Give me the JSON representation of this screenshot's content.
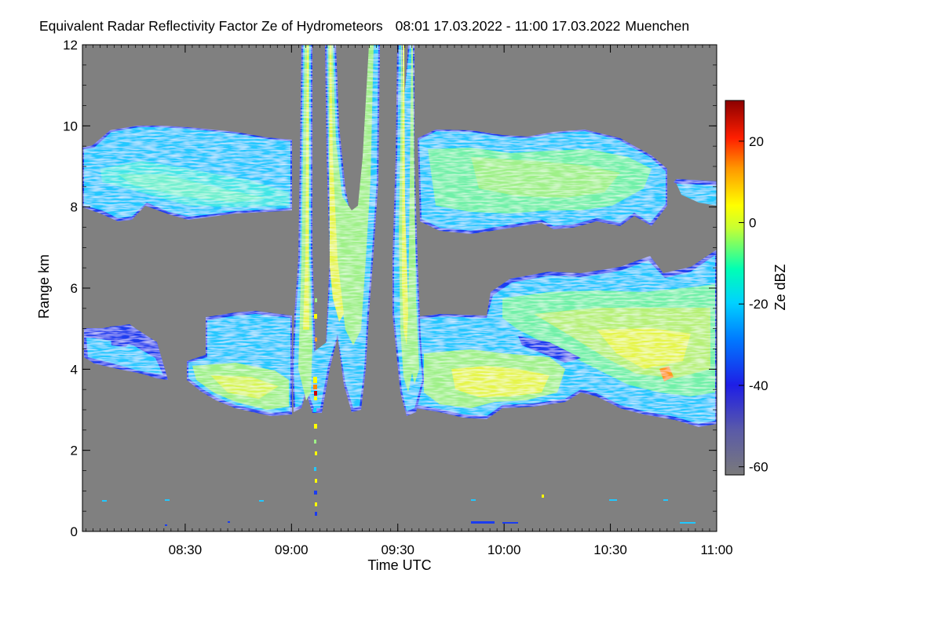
{
  "chart_data": {
    "type": "heatmap",
    "title": "Equivalent Radar Reflectivity Factor Ze of Hydrometeors",
    "time_range": "08:01 17.03.2022 - 11:00 17.03.2022",
    "location": "Muenchen",
    "xlabel": "Time UTC",
    "ylabel": "Range km",
    "x_ticks": [
      "08:30",
      "09:00",
      "09:30",
      "10:00",
      "10:30",
      "11:00"
    ],
    "x_tick_minutes": [
      30,
      60,
      90,
      120,
      150,
      180
    ],
    "xlim_minutes": [
      1,
      180
    ],
    "y_ticks": [
      "0",
      "2",
      "4",
      "6",
      "8",
      "10",
      "12"
    ],
    "y_tick_values": [
      0,
      2,
      4,
      6,
      8,
      10,
      12
    ],
    "ylim": [
      0,
      12
    ],
    "colorbar": {
      "label": "Ze dBZ",
      "ticks": [
        "20",
        "0",
        "-20",
        "-40",
        "-60"
      ],
      "tick_values": [
        20,
        0,
        -20,
        -40,
        -60
      ],
      "range": [
        -62,
        30
      ],
      "colors": [
        "#7a7a7a",
        "#1e1ee6",
        "#00d2ff",
        "#00ffaa",
        "#ffff00",
        "#ff8800",
        "#ff0000",
        "#8b0000"
      ]
    },
    "no_signal_color": "#808080",
    "layers": [
      {
        "name": "upper cirrus layer (early)",
        "t_start": 1,
        "t_end": 58,
        "base_km": 7.9,
        "top_km": 9.8,
        "mean_dbz": -24
      },
      {
        "name": "upper cirrus layer (late)",
        "t_start": 86,
        "t_end": 180,
        "base_km": 7.6,
        "top_km": 9.6,
        "mean_dbz": -18
      },
      {
        "name": "mid-level cloud (early)",
        "t_start": 1,
        "t_end": 58,
        "base_km": 3.0,
        "top_km": 5.0,
        "mean_dbz": -16
      },
      {
        "name": "mid-level cloud (late)",
        "t_start": 86,
        "t_end": 180,
        "base_km": 2.8,
        "top_km": 6.6,
        "mean_dbz": -10
      },
      {
        "name": "vertical plume 1",
        "t_start": 58,
        "t_end": 73,
        "base_km": 2.9,
        "top_km": 12,
        "mean_dbz": -10
      },
      {
        "name": "vertical plume 2",
        "t_start": 73,
        "t_end": 86,
        "base_km": 2.9,
        "top_km": 12,
        "mean_dbz": -10
      }
    ]
  }
}
